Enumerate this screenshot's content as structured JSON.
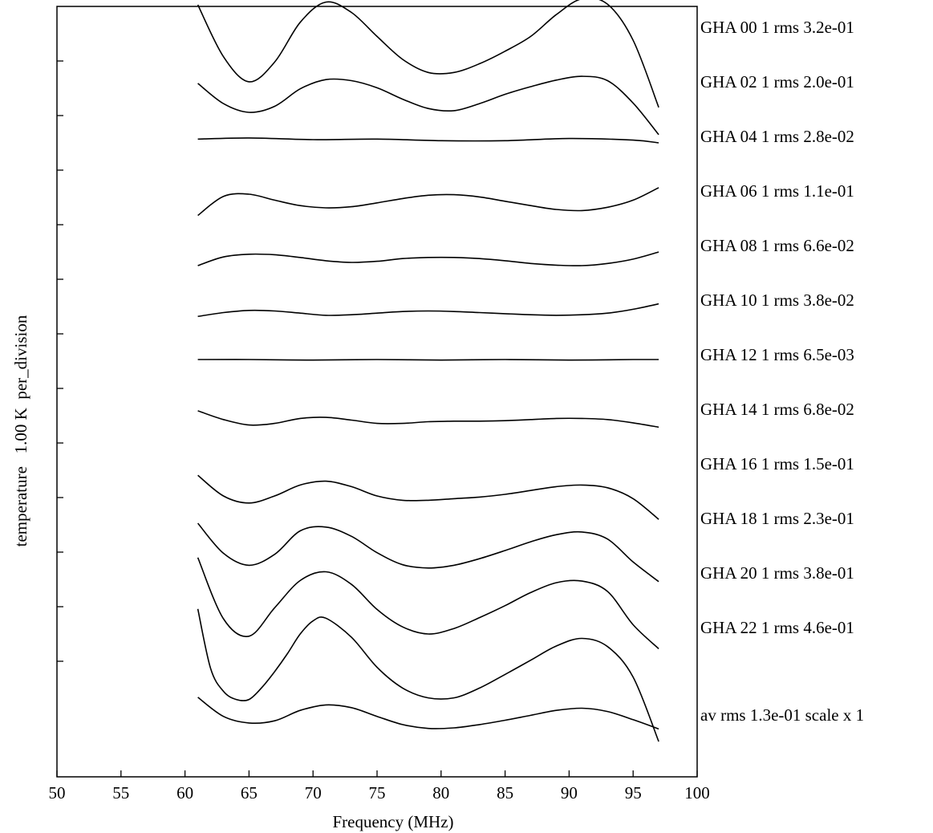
{
  "chart_data": {
    "type": "line",
    "xlabel": "Frequency (MHz)",
    "ylabel": "temperature   1.00 K  per_division",
    "xlim": [
      50,
      100
    ],
    "xticks": [
      50,
      55,
      60,
      65,
      70,
      75,
      80,
      85,
      90,
      95,
      100
    ],
    "grid": false,
    "legend": "right",
    "series": [
      {
        "name": "GHA 00 1 rms 3.2e-01",
        "offset": 0,
        "x": [
          61,
          63,
          65,
          67,
          69,
          71,
          73,
          75,
          77,
          79,
          81,
          83,
          85,
          87,
          89,
          91,
          93,
          95,
          97
        ],
        "y": [
          0.5,
          -0.45,
          -0.91,
          -0.55,
          0.18,
          0.55,
          0.36,
          -0.08,
          -0.5,
          -0.74,
          -0.74,
          -0.58,
          -0.35,
          -0.08,
          0.32,
          0.61,
          0.51,
          -0.15,
          -1.38
        ]
      },
      {
        "name": "GHA 02 1 rms 2.0e-01",
        "offset": 1,
        "x": [
          61,
          63,
          65,
          67,
          69,
          71,
          73,
          75,
          77,
          79,
          81,
          83,
          85,
          87,
          89,
          91,
          93,
          95,
          97
        ],
        "y": [
          0.06,
          -0.31,
          -0.47,
          -0.36,
          -0.04,
          0.13,
          0.11,
          -0.02,
          -0.23,
          -0.4,
          -0.44,
          -0.31,
          -0.14,
          0.0,
          0.12,
          0.19,
          0.11,
          -0.3,
          -0.88
        ]
      },
      {
        "name": "GHA 04 1 rms 2.8e-02",
        "offset": 2,
        "x": [
          61,
          65,
          70,
          75,
          80,
          85,
          90,
          95,
          97
        ],
        "y": [
          0.04,
          0.06,
          0.03,
          0.04,
          0.01,
          0.01,
          0.05,
          0.02,
          -0.03
        ]
      },
      {
        "name": "GHA 06 1 rms 1.1e-01",
        "offset": 3,
        "x": [
          61,
          63,
          65,
          67,
          69,
          71,
          73,
          75,
          77,
          79,
          81,
          83,
          85,
          87,
          89,
          91,
          93,
          95,
          97
        ],
        "y": [
          -0.36,
          -0.01,
          0.03,
          -0.08,
          -0.18,
          -0.22,
          -0.2,
          -0.13,
          -0.05,
          0.01,
          0.02,
          -0.02,
          -0.1,
          -0.18,
          -0.25,
          -0.27,
          -0.21,
          -0.08,
          0.15
        ]
      },
      {
        "name": "GHA 08 1 rms 6.6e-02",
        "offset": 4,
        "x": [
          61,
          63,
          65,
          67,
          69,
          71,
          73,
          75,
          77,
          79,
          81,
          83,
          85,
          87,
          89,
          91,
          93,
          95,
          97
        ],
        "y": [
          -0.28,
          -0.12,
          -0.07,
          -0.08,
          -0.13,
          -0.19,
          -0.22,
          -0.2,
          -0.15,
          -0.13,
          -0.13,
          -0.15,
          -0.19,
          -0.24,
          -0.27,
          -0.28,
          -0.24,
          -0.16,
          -0.03
        ]
      },
      {
        "name": "GHA 10 1 rms 3.8e-02",
        "offset": 5,
        "x": [
          61,
          63,
          65,
          67,
          69,
          71,
          73,
          75,
          77,
          79,
          81,
          83,
          85,
          87,
          89,
          91,
          93,
          95,
          97
        ],
        "y": [
          -0.21,
          -0.14,
          -0.1,
          -0.11,
          -0.15,
          -0.19,
          -0.18,
          -0.15,
          -0.12,
          -0.11,
          -0.12,
          -0.14,
          -0.16,
          -0.18,
          -0.19,
          -0.18,
          -0.15,
          -0.08,
          0.02
        ]
      },
      {
        "name": "GHA 12 1 rms 6.5e-03",
        "offset": 6,
        "x": [
          61,
          65,
          70,
          75,
          80,
          85,
          90,
          95,
          97
        ],
        "y": [
          0.0,
          0.0,
          -0.01,
          0.0,
          -0.01,
          0.0,
          -0.01,
          0.0,
          0.0
        ]
      },
      {
        "name": "GHA 14 1 rms 6.8e-02",
        "offset": 7,
        "x": [
          61,
          63,
          65,
          67,
          69,
          71,
          73,
          75,
          77,
          79,
          81,
          83,
          85,
          87,
          89,
          91,
          93,
          95,
          97
        ],
        "y": [
          0.06,
          -0.1,
          -0.2,
          -0.17,
          -0.08,
          -0.06,
          -0.11,
          -0.17,
          -0.17,
          -0.14,
          -0.13,
          -0.13,
          -0.12,
          -0.1,
          -0.08,
          -0.08,
          -0.1,
          -0.16,
          -0.24
        ]
      },
      {
        "name": "GHA 16 1 rms 1.5e-01",
        "offset": 8,
        "x": [
          61,
          63,
          65,
          67,
          69,
          71,
          73,
          75,
          77,
          79,
          81,
          83,
          85,
          87,
          89,
          91,
          93,
          95,
          97
        ],
        "y": [
          -0.12,
          -0.5,
          -0.63,
          -0.5,
          -0.3,
          -0.23,
          -0.33,
          -0.5,
          -0.58,
          -0.58,
          -0.55,
          -0.52,
          -0.47,
          -0.4,
          -0.33,
          -0.3,
          -0.35,
          -0.55,
          -0.93
        ]
      },
      {
        "name": "GHA 18 1 rms 2.3e-01",
        "offset": 9,
        "x": [
          61,
          63,
          65,
          67,
          69,
          71,
          73,
          75,
          77,
          79,
          81,
          83,
          85,
          87,
          89,
          91,
          93,
          95,
          97
        ],
        "y": [
          0.0,
          -0.55,
          -0.77,
          -0.57,
          -0.14,
          -0.07,
          -0.24,
          -0.54,
          -0.76,
          -0.82,
          -0.77,
          -0.65,
          -0.5,
          -0.34,
          -0.21,
          -0.16,
          -0.29,
          -0.71,
          -1.07
        ]
      },
      {
        "name": "GHA 20 1 rms 3.8e-01",
        "offset": 10,
        "x": [
          61,
          63,
          65,
          67,
          69,
          71,
          73,
          75,
          77,
          79,
          81,
          83,
          85,
          87,
          89,
          91,
          93,
          95,
          97
        ],
        "y": [
          0.37,
          -0.75,
          -1.07,
          -0.55,
          -0.05,
          0.11,
          -0.12,
          -0.58,
          -0.9,
          -1.03,
          -0.93,
          -0.73,
          -0.51,
          -0.27,
          -0.09,
          -0.06,
          -0.25,
          -0.86,
          -1.3
        ]
      },
      {
        "name": "GHA 22 1 rms 4.6e-01",
        "offset": 11,
        "x": [
          61,
          62,
          63,
          64,
          65,
          66,
          67,
          68,
          69,
          70,
          71,
          73,
          75,
          77,
          79,
          81,
          83,
          85,
          87,
          89,
          91,
          93,
          95,
          97
        ],
        "y": [
          0.43,
          -0.66,
          -1.08,
          -1.23,
          -1.23,
          -1.01,
          -0.72,
          -0.39,
          -0.03,
          0.21,
          0.26,
          -0.09,
          -0.64,
          -1.02,
          -1.2,
          -1.2,
          -1.02,
          -0.77,
          -0.51,
          -0.25,
          -0.11,
          -0.26,
          -0.82,
          -2.0
        ]
      },
      {
        "name": "av  rms 1.3e-01 scale x 1",
        "offset": 12.6,
        "x": [
          61,
          63,
          65,
          67,
          69,
          71,
          73,
          75,
          77,
          79,
          81,
          83,
          85,
          87,
          89,
          91,
          93,
          95,
          97
        ],
        "y": [
          0.41,
          0.06,
          -0.06,
          -0.02,
          0.17,
          0.27,
          0.22,
          0.06,
          -0.09,
          -0.16,
          -0.15,
          -0.09,
          -0.01,
          0.08,
          0.17,
          0.21,
          0.15,
          0.0,
          -0.17
        ]
      }
    ]
  }
}
